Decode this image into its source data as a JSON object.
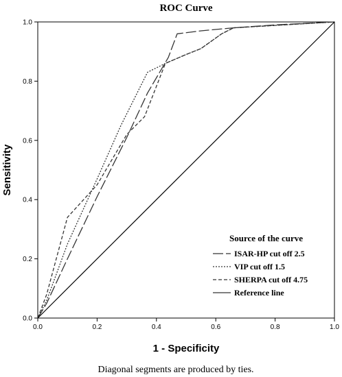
{
  "chart_data": {
    "type": "line",
    "title": "ROC  Curve",
    "xlabel": "1 - Specificity",
    "ylabel": "Sensitivity",
    "xlim": [
      0,
      1
    ],
    "ylim": [
      0,
      1
    ],
    "x_ticks": [
      "0.0",
      "0.2",
      "0.4",
      "0.6",
      "0.8",
      "1.0"
    ],
    "y_ticks": [
      "0.0",
      "0.2",
      "0.4",
      "0.6",
      "0.8",
      "1.0"
    ],
    "grid": false,
    "legend_title": "Source of the curve",
    "legend_position": "bottom-right",
    "footnote": "Diagonal segments are produced by ties.",
    "series": [
      {
        "name": "ISAR-HP cut off  2.5",
        "dash": "long-dash",
        "points": [
          [
            0,
            0
          ],
          [
            0.03,
            0.05
          ],
          [
            0.1,
            0.2
          ],
          [
            0.2,
            0.41
          ],
          [
            0.3,
            0.61
          ],
          [
            0.37,
            0.76
          ],
          [
            0.44,
            0.88
          ],
          [
            0.47,
            0.96
          ],
          [
            0.55,
            0.97
          ],
          [
            0.66,
            0.98
          ],
          [
            0.8,
            0.99
          ],
          [
            1,
            1
          ]
        ]
      },
      {
        "name": "VIP cut off  1.5",
        "dash": "dotted",
        "points": [
          [
            0,
            0
          ],
          [
            0.03,
            0.06
          ],
          [
            0.1,
            0.25
          ],
          [
            0.2,
            0.47
          ],
          [
            0.28,
            0.65
          ],
          [
            0.37,
            0.83
          ],
          [
            0.43,
            0.86
          ],
          [
            0.5,
            0.89
          ],
          [
            0.55,
            0.91
          ],
          [
            0.62,
            0.96
          ],
          [
            0.66,
            0.98
          ],
          [
            1,
            1
          ]
        ]
      },
      {
        "name": "SHERPA cut off  4.75",
        "dash": "dashed",
        "points": [
          [
            0,
            0
          ],
          [
            0.03,
            0.08
          ],
          [
            0.1,
            0.34
          ],
          [
            0.2,
            0.45
          ],
          [
            0.3,
            0.62
          ],
          [
            0.36,
            0.68
          ],
          [
            0.43,
            0.86
          ],
          [
            0.5,
            0.89
          ],
          [
            0.55,
            0.91
          ],
          [
            0.62,
            0.96
          ],
          [
            0.66,
            0.98
          ],
          [
            1,
            1
          ]
        ]
      },
      {
        "name": "Reference line",
        "dash": "solid",
        "points": [
          [
            0,
            0
          ],
          [
            1,
            1
          ]
        ]
      }
    ]
  }
}
